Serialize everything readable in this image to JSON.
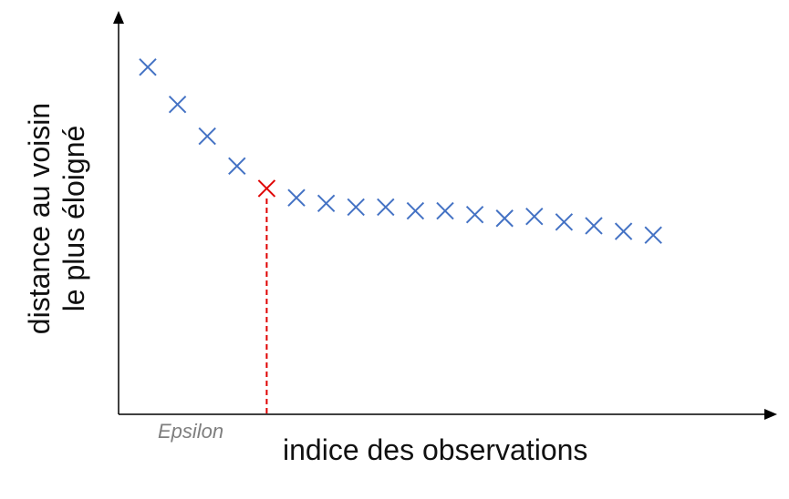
{
  "chart_data": {
    "type": "scatter",
    "title": "",
    "xlabel": "indice des observations",
    "ylabel_lines": [
      "distance au voisin",
      "le plus éloigné"
    ],
    "threshold_label": "Epsilon",
    "threshold_index": 5,
    "x": [
      1,
      2,
      3,
      4,
      5,
      6,
      7,
      8,
      9,
      10,
      11,
      12,
      13,
      14,
      15,
      16,
      17,
      18
    ],
    "y": [
      10.3,
      8.3,
      6.6,
      5.0,
      3.8,
      3.3,
      3.0,
      2.8,
      2.8,
      2.6,
      2.6,
      2.4,
      2.2,
      2.3,
      2.0,
      1.8,
      1.5,
      1.3
    ],
    "ylim": [
      -8.3,
      12.3
    ],
    "grid": false,
    "colors": {
      "points": "#4472c4",
      "threshold": "#e00000",
      "axes": "#000000"
    }
  }
}
